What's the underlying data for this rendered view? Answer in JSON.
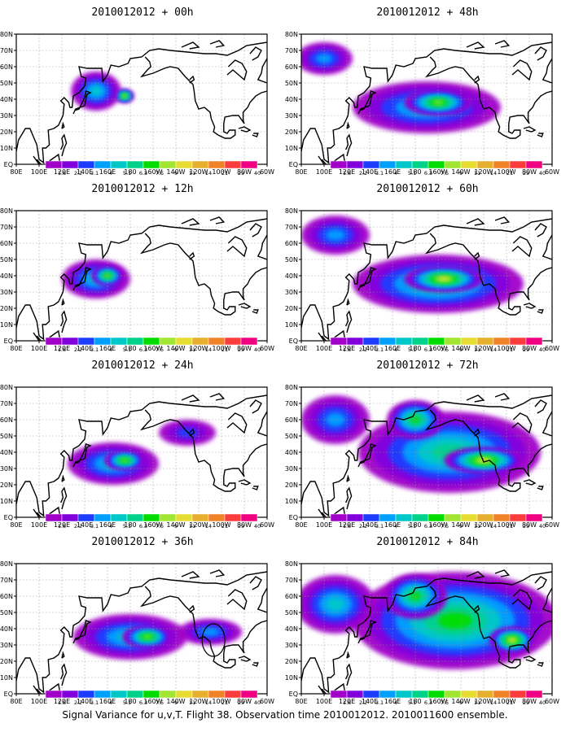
{
  "chart_data": {
    "type": "heatmap",
    "panels": [
      {
        "title": "2010012012 + 00h",
        "blobs": [
          [
            150,
            45,
            22,
            12,
            4
          ],
          [
            175,
            42,
            8,
            4,
            8
          ]
        ],
        "circle": null
      },
      {
        "title": "2010012012 + 12h",
        "blobs": [
          [
            150,
            38,
            30,
            12,
            4
          ],
          [
            160,
            40,
            14,
            6,
            7
          ]
        ],
        "circle": null
      },
      {
        "title": "2010012012 + 24h",
        "blobs": [
          [
            165,
            33,
            40,
            13,
            4
          ],
          [
            175,
            35,
            18,
            6,
            7
          ],
          [
            230,
            52,
            25,
            8,
            2
          ]
        ],
        "circle": null
      },
      {
        "title": "2010012012 + 36h",
        "blobs": [
          [
            180,
            35,
            50,
            14,
            4
          ],
          [
            195,
            35,
            22,
            7,
            7
          ],
          [
            250,
            38,
            28,
            8,
            3
          ]
        ],
        "circle": [
          253,
          33,
          10
        ]
      },
      {
        "title": "2010012012 + 48h",
        "blobs": [
          [
            190,
            35,
            65,
            16,
            4
          ],
          [
            200,
            38,
            30,
            8,
            7
          ],
          [
            100,
            65,
            25,
            10,
            3
          ]
        ],
        "circle": null
      },
      {
        "title": "2010012012 + 60h",
        "blobs": [
          [
            200,
            35,
            75,
            18,
            5
          ],
          [
            205,
            38,
            35,
            8,
            8
          ],
          [
            110,
            65,
            30,
            12,
            3
          ]
        ],
        "circle": null
      },
      {
        "title": "2010012012 + 72h",
        "blobs": [
          [
            210,
            40,
            80,
            25,
            5
          ],
          [
            240,
            35,
            35,
            8,
            8
          ],
          [
            180,
            60,
            25,
            12,
            6
          ],
          [
            110,
            60,
            30,
            15,
            3
          ]
        ],
        "circle": null
      },
      {
        "title": "2010012012 + 84h",
        "blobs": [
          [
            215,
            45,
            90,
            30,
            6
          ],
          [
            265,
            33,
            20,
            8,
            8
          ],
          [
            180,
            60,
            28,
            14,
            6
          ],
          [
            110,
            55,
            35,
            18,
            4
          ]
        ],
        "circle": null
      }
    ],
    "x_ticks": [
      "80E",
      "100E",
      "120E",
      "140E",
      "160E",
      "180",
      "160W",
      "140W",
      "120W",
      "100W",
      "80W",
      "60W"
    ],
    "y_ticks": [
      "EQ",
      "10N",
      "20N",
      "30N",
      "40N",
      "50N",
      "60N",
      "70N",
      "80N"
    ],
    "x_range": [
      80,
      300
    ],
    "y_range": [
      0,
      80
    ],
    "levels": [
      "1.8",
      "2.2",
      "3.1",
      "4",
      "5.1",
      "6.3",
      "7.5",
      "9",
      "11",
      "14",
      "21",
      "29",
      "40"
    ],
    "colors": [
      "#a000c8",
      "#8200dc",
      "#1e3cff",
      "#00a0ff",
      "#00c8c8",
      "#00d28c",
      "#00dc00",
      "#a0e632",
      "#e6dc32",
      "#e6af2d",
      "#f08228",
      "#fa3c3c",
      "#f00082"
    ],
    "grid": true,
    "caption": "Signal Variance for u,v,T. Flight 38. Observation time 2010012012. 2010011600 ensemble."
  }
}
